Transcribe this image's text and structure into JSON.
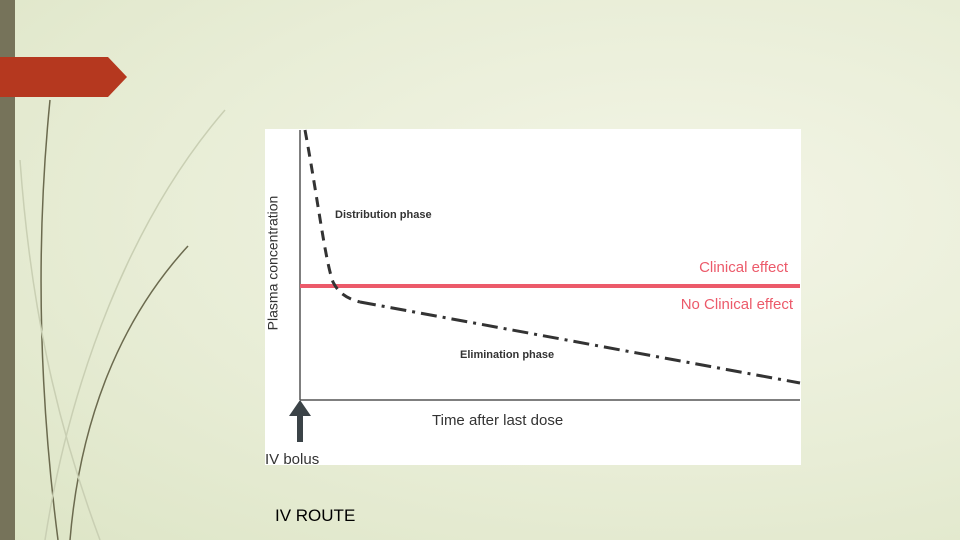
{
  "diagram": {
    "y_axis_label": "Plasma concentration",
    "x_axis_label": "Time after last dose",
    "distribution_label": "Distribution phase",
    "elimination_label": "Elimination phase",
    "clinical_label": "Clinical effect",
    "no_clinical_label": "No Clinical effect",
    "bolus_label": "IV bolus"
  },
  "caption": "IV ROUTE"
}
